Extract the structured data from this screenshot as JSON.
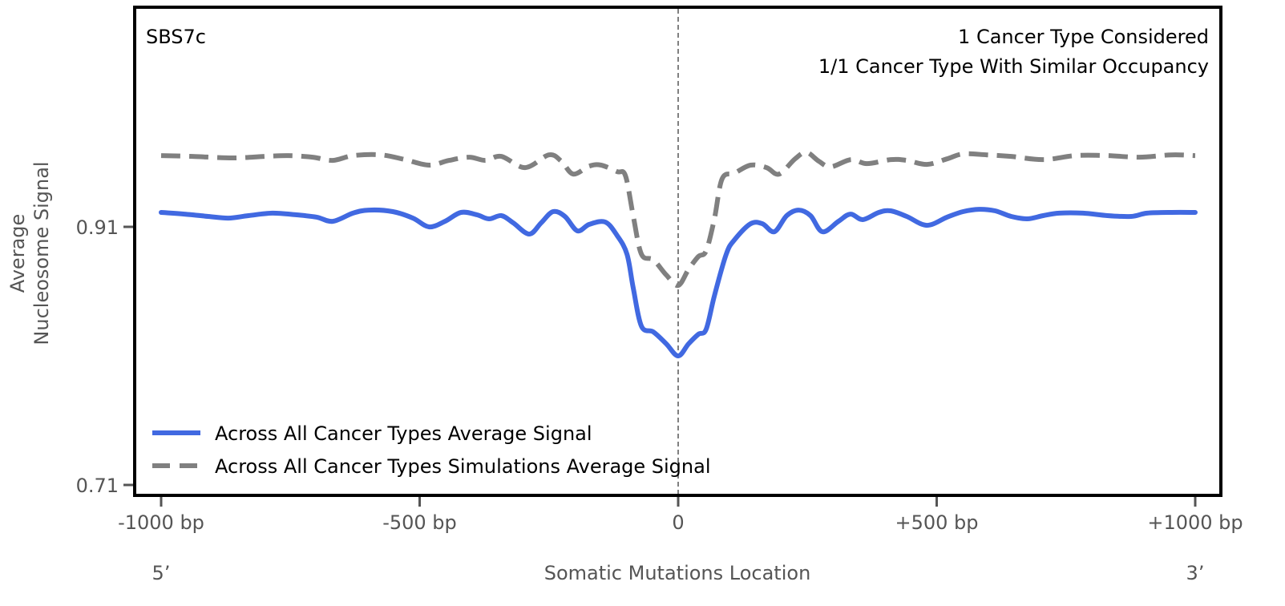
{
  "chart_data": {
    "type": "line",
    "title": "",
    "xlabel": "Somatic Mutations Location",
    "ylabel": "Average\nNucleosome Signal",
    "ylabel_lines": [
      "Average",
      "Nucleosome Signal"
    ],
    "xlim": [
      -1050,
      1050
    ],
    "ylim": [
      0.702,
      1.08
    ],
    "xticks": [
      -1000,
      -500,
      0,
      500,
      1000
    ],
    "xtick_labels": [
      "-1000 bp",
      "-500 bp",
      "0",
      "+500 bp",
      "+1000 bp"
    ],
    "yticks": [
      0.71,
      0.91
    ],
    "ytick_labels": [
      "0.71",
      "0.91"
    ],
    "x_end_labels": {
      "left": "5’",
      "right": "3’"
    },
    "grid": false,
    "vline": {
      "x": 0,
      "style": "dashed",
      "color": "#808080"
    },
    "annotations": {
      "top_left": "SBS7c",
      "top_right": [
        "1 Cancer Type Considered",
        "1/1 Cancer Type With Similar Occupancy"
      ]
    },
    "legend": {
      "placement": "lower-left",
      "entries": [
        {
          "label": "Across All Cancer Types Average Signal",
          "style": "solid",
          "color": "#4169E1"
        },
        {
          "label": "Across All Cancer Types Simulations Average Signal",
          "style": "dashed",
          "color": "#808080"
        }
      ]
    },
    "series": [
      {
        "name": "Across All Cancer Types Average Signal",
        "color": "#4169E1",
        "style": "solid",
        "x": [
          -1000,
          -955,
          -909,
          -870,
          -831,
          -785,
          -738,
          -699,
          -668,
          -629,
          -598,
          -552,
          -513,
          -482,
          -451,
          -420,
          -389,
          -366,
          -342,
          -319,
          -288,
          -265,
          -242,
          -219,
          -195,
          -172,
          -141,
          -118,
          -99,
          -87,
          -71,
          -48,
          -23,
          0,
          20,
          39,
          54,
          70,
          93,
          109,
          140,
          163,
          186,
          210,
          233,
          256,
          279,
          310,
          333,
          357,
          388,
          411,
          442,
          481,
          520,
          551,
          582,
          613,
          644,
          675,
          706,
          737,
          783,
          830,
          876,
          907,
          954,
          1000
        ],
        "y": [
          0.9212,
          0.9199,
          0.9181,
          0.9168,
          0.9187,
          0.9206,
          0.9193,
          0.9175,
          0.9143,
          0.9206,
          0.923,
          0.9218,
          0.9168,
          0.91,
          0.9143,
          0.9212,
          0.9193,
          0.9162,
          0.9187,
          0.9131,
          0.9044,
          0.9131,
          0.9218,
          0.9181,
          0.9069,
          0.9119,
          0.9137,
          0.9032,
          0.8889,
          0.8628,
          0.833,
          0.8286,
          0.8193,
          0.81,
          0.8193,
          0.8268,
          0.8305,
          0.8566,
          0.8889,
          0.9,
          0.9124,
          0.9124,
          0.9062,
          0.9187,
          0.923,
          0.9187,
          0.9062,
          0.9143,
          0.9199,
          0.9156,
          0.9212,
          0.9224,
          0.9181,
          0.9112,
          0.9175,
          0.9218,
          0.9236,
          0.9224,
          0.9181,
          0.9162,
          0.9187,
          0.9206,
          0.9206,
          0.9187,
          0.9181,
          0.9206,
          0.9212,
          0.9212
        ]
      },
      {
        "name": "Across All Cancer Types Simulations Average Signal",
        "color": "#808080",
        "style": "dashed",
        "x": [
          -1000,
          -939,
          -862,
          -800,
          -754,
          -707,
          -668,
          -629,
          -575,
          -528,
          -482,
          -443,
          -404,
          -373,
          -342,
          -296,
          -250,
          -226,
          -203,
          -172,
          -149,
          -118,
          -102,
          -87,
          -71,
          -48,
          -23,
          0,
          20,
          39,
          54,
          70,
          85,
          109,
          140,
          171,
          195,
          226,
          248,
          272,
          295,
          334,
          365,
          411,
          442,
          481,
          520,
          551,
          597,
          644,
          706,
          768,
          830,
          892,
          954,
          1000
        ],
        "y": [
          0.9652,
          0.9646,
          0.9634,
          0.9646,
          0.9652,
          0.964,
          0.9615,
          0.9652,
          0.9658,
          0.9621,
          0.9578,
          0.9615,
          0.964,
          0.9615,
          0.9646,
          0.9559,
          0.9658,
          0.9609,
          0.9509,
          0.9571,
          0.9578,
          0.9528,
          0.9497,
          0.9186,
          0.8888,
          0.8845,
          0.8727,
          0.8646,
          0.877,
          0.887,
          0.8913,
          0.9162,
          0.9472,
          0.9516,
          0.9578,
          0.9559,
          0.9509,
          0.9627,
          0.9677,
          0.9609,
          0.9565,
          0.9621,
          0.959,
          0.9621,
          0.9615,
          0.9584,
          0.9627,
          0.9665,
          0.9658,
          0.9646,
          0.9621,
          0.9652,
          0.9652,
          0.964,
          0.9658,
          0.9652
        ]
      }
    ]
  }
}
